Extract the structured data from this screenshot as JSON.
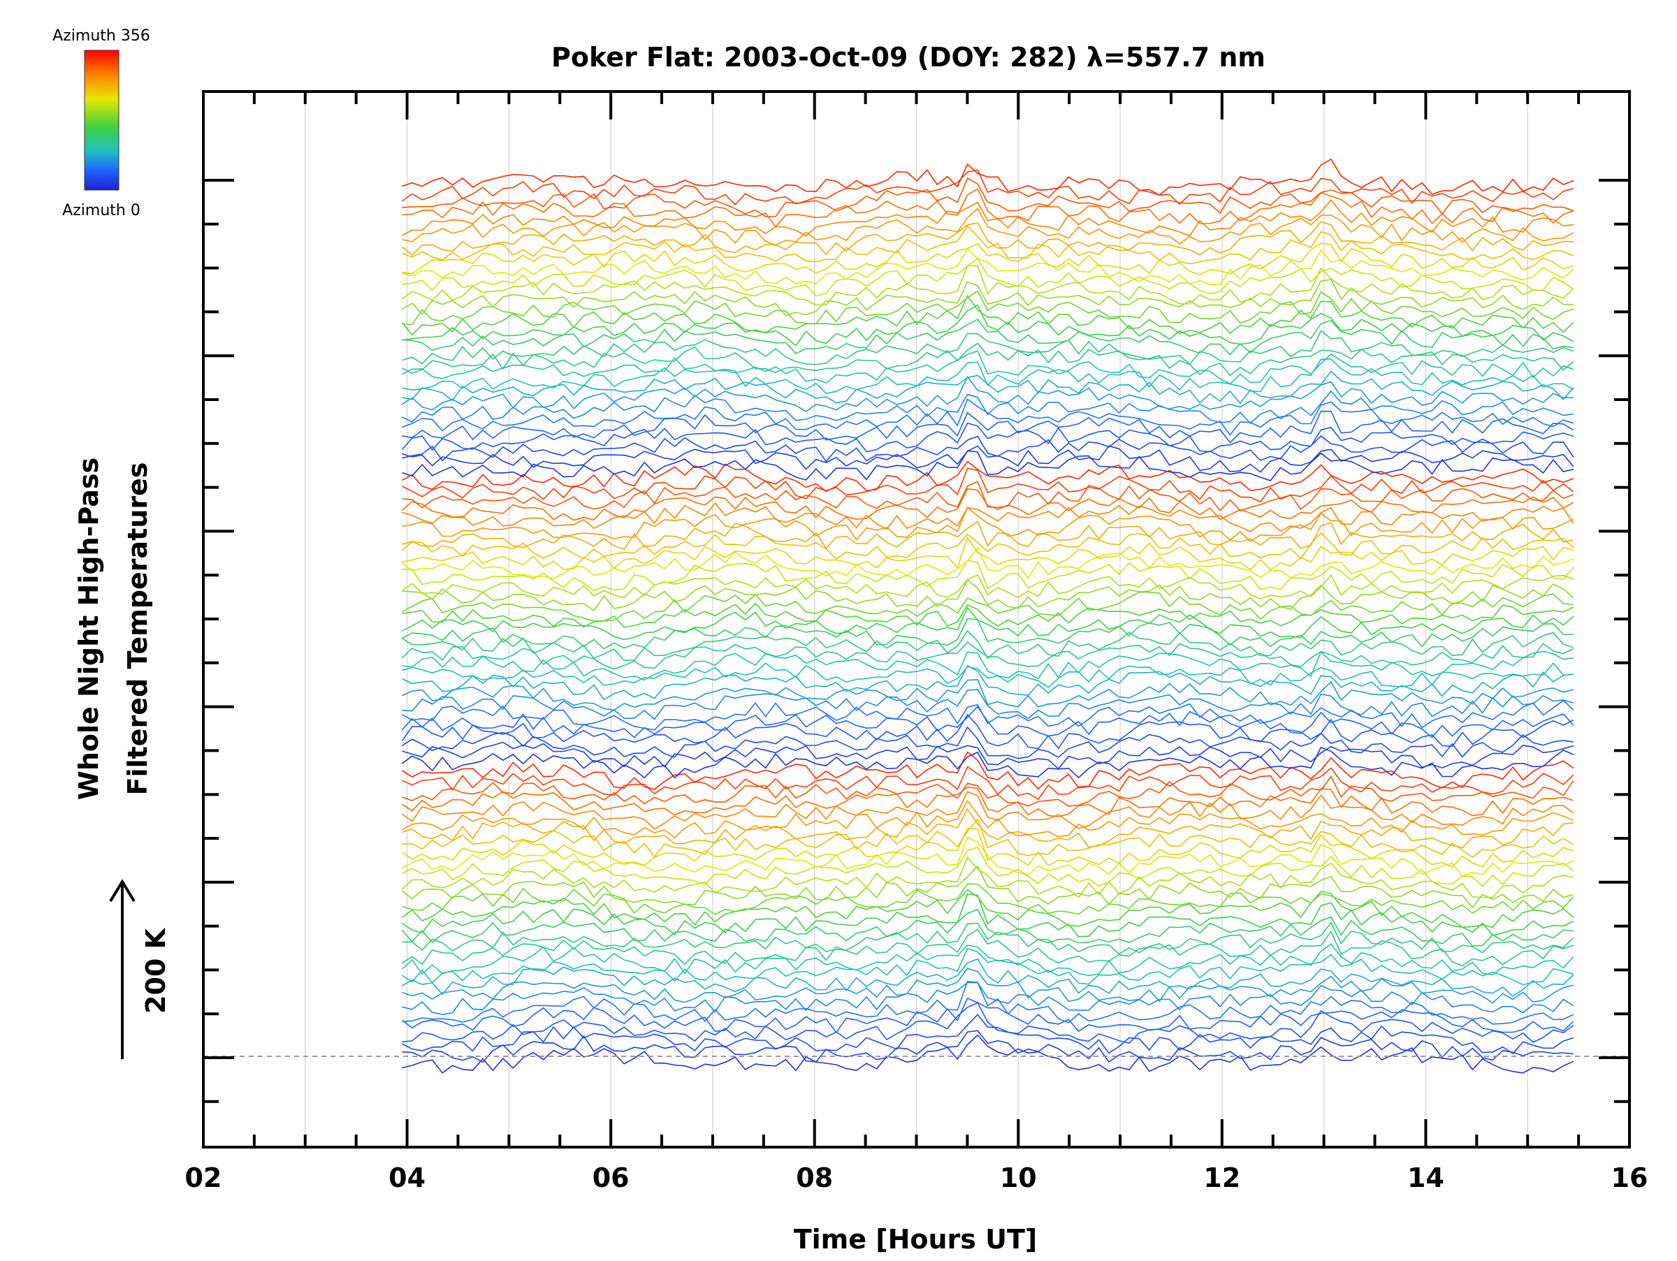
{
  "chart_data": {
    "type": "line",
    "title": "Poker Flat: 2003-Oct-09 (DOY: 282) λ=557.7 nm",
    "xlabel": "Time [Hours UT]",
    "ylabel_line1": "Whole Night High-Pass",
    "ylabel_line2": "Filtered Temperatures",
    "xlim": [
      2,
      16
    ],
    "x_tick_labels": [
      "02",
      "04",
      "06",
      "08",
      "10",
      "12",
      "14",
      "16"
    ],
    "x_tick_values": [
      2,
      4,
      6,
      8,
      10,
      12,
      14,
      16
    ],
    "grid": "vertical lines every hour",
    "time_start": 3.95,
    "time_end": 15.45,
    "scale_bar_label": "200 K",
    "colorbar": {
      "top_label": "Azimuth 356",
      "bottom_label": "Azimuth 0",
      "colormap": "rainbow",
      "colors": [
        "#ff0000",
        "#ff8000",
        "#e6e600",
        "#40d040",
        "#20c0c0",
        "#1e60ff",
        "#2020d0"
      ]
    },
    "baseline": "dashed line at bottom trace",
    "series_count": 90,
    "series_note": "stacked high-pass filtered temperature traces, one per azimuth, colored by azimuth"
  }
}
